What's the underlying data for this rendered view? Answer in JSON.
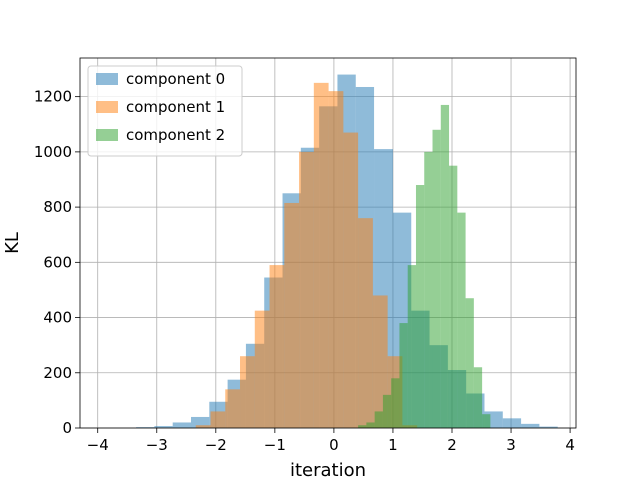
{
  "chart_data": {
    "type": "bar",
    "subtype": "histogram",
    "title": "",
    "xlabel": "iteration",
    "ylabel": "KL",
    "xlim": [
      -4.3,
      4.1
    ],
    "ylim": [
      0,
      1340
    ],
    "xticks": [
      -4,
      -3,
      -2,
      -1,
      0,
      1,
      2,
      3,
      4
    ],
    "xtick_labels": [
      "−4",
      "−3",
      "−2",
      "−1",
      "0",
      "1",
      "2",
      "3",
      "4"
    ],
    "yticks": [
      0,
      200,
      400,
      600,
      800,
      1000,
      1200
    ],
    "ytick_labels": [
      "0",
      "200",
      "400",
      "600",
      "800",
      "1000",
      "1200"
    ],
    "grid": true,
    "legend_position": "top-left",
    "series": [
      {
        "name": "component 0",
        "color": "#1f77b4",
        "bin_edges": [
          -3.35,
          -3.04,
          -2.73,
          -2.42,
          -2.11,
          -1.8,
          -1.49,
          -1.18,
          -0.87,
          -0.56,
          -0.25,
          0.06,
          0.37,
          0.68,
          1.0,
          1.31,
          1.62,
          1.93,
          2.24,
          2.55,
          2.86,
          3.17,
          3.48,
          3.79
        ],
        "counts": [
          3,
          7,
          20,
          40,
          95,
          175,
          305,
          545,
          850,
          1015,
          1165,
          1280,
          1235,
          1010,
          780,
          425,
          300,
          210,
          125,
          60,
          35,
          15,
          5
        ]
      },
      {
        "name": "component 1",
        "color": "#ff7f0e",
        "bin_edges": [
          -2.34,
          -2.09,
          -1.84,
          -1.59,
          -1.34,
          -1.09,
          -0.84,
          -0.59,
          -0.34,
          -0.09,
          0.16,
          0.41,
          0.66,
          0.91,
          1.16,
          1.41
        ],
        "counts": [
          10,
          60,
          140,
          260,
          425,
          590,
          815,
          1000,
          1250,
          1220,
          1070,
          760,
          480,
          260,
          10
        ]
      },
      {
        "name": "component 2",
        "color": "#2ca02c",
        "bin_edges": [
          0.41,
          0.55,
          0.69,
          0.83,
          0.97,
          1.11,
          1.25,
          1.39,
          1.53,
          1.67,
          1.81,
          1.95,
          2.09,
          2.23,
          2.37,
          2.51,
          2.65
        ],
        "counts": [
          10,
          20,
          60,
          120,
          180,
          380,
          590,
          880,
          1000,
          1080,
          1170,
          950,
          780,
          470,
          220,
          50
        ]
      }
    ]
  }
}
